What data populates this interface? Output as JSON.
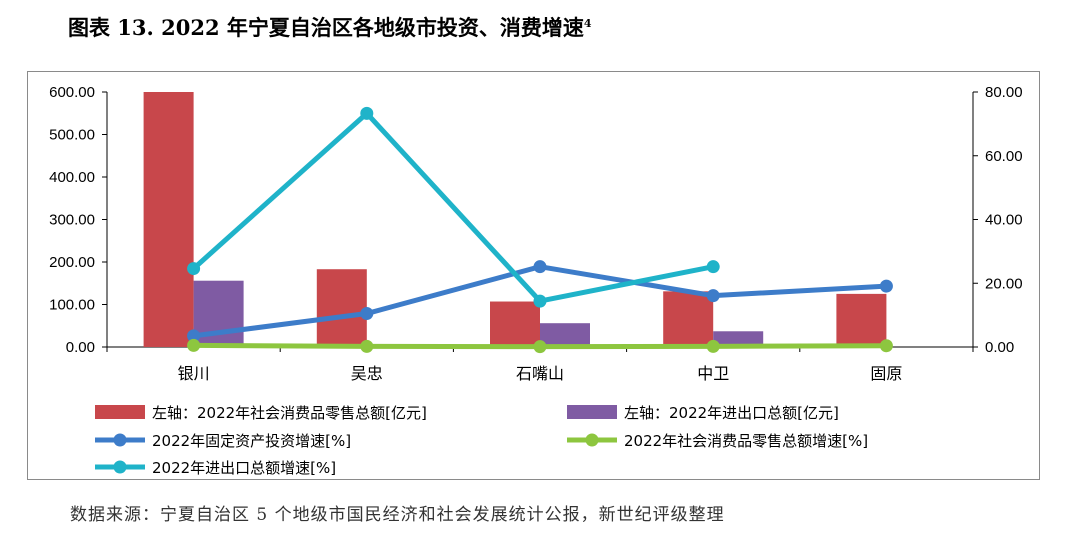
{
  "title_main": "图表 13. 2022 年宁夏自治区各地级市投资、消费增速",
  "title_sup": "4",
  "source": "数据来源：宁夏自治区 5 个地级市国民经济和社会发展统计公报，新世纪评级整理",
  "colors": {
    "retail_bar": "#c8474b",
    "trade_bar": "#7f5ba3",
    "fixed_inv_line": "#3d7cc9",
    "retail_growth_line": "#8dc63f",
    "trade_growth_line": "#1fb3c9"
  },
  "chart_data": {
    "type": "bar+line",
    "categories": [
      "银川",
      "吴忠",
      "石嘴山",
      "中卫",
      "固原"
    ],
    "left_axis": {
      "ylim": [
        0,
        600
      ],
      "ticks": [
        "0.00",
        "100.00",
        "200.00",
        "300.00",
        "400.00",
        "500.00",
        "600.00"
      ]
    },
    "right_axis": {
      "ylim": [
        0,
        80
      ],
      "ticks": [
        "0.00",
        "20.00",
        "40.00",
        "60.00",
        "80.00"
      ]
    },
    "series": [
      {
        "name": "左轴：2022年社会消费品零售总额[亿元]",
        "type": "bar",
        "axis": "left",
        "values": [
          600,
          183,
          107,
          131,
          125
        ]
      },
      {
        "name": "左轴：2022年进出口总额[亿元]",
        "type": "bar",
        "axis": "left",
        "values": [
          156,
          1,
          56,
          37,
          null
        ]
      },
      {
        "name": "2022年固定资产投资增速[%]",
        "type": "line",
        "axis": "right",
        "values": [
          3.5,
          10.5,
          25.2,
          16.1,
          19.1
        ]
      },
      {
        "name": "2022年社会消费品零售总额增速[%]",
        "type": "line",
        "axis": "right",
        "values": [
          0.5,
          0.2,
          0.1,
          0.2,
          0.4
        ]
      },
      {
        "name": "2022年进出口总额增速[%]",
        "type": "line",
        "axis": "right",
        "values": [
          24.6,
          73.3,
          14.4,
          25.2,
          null
        ]
      }
    ]
  }
}
